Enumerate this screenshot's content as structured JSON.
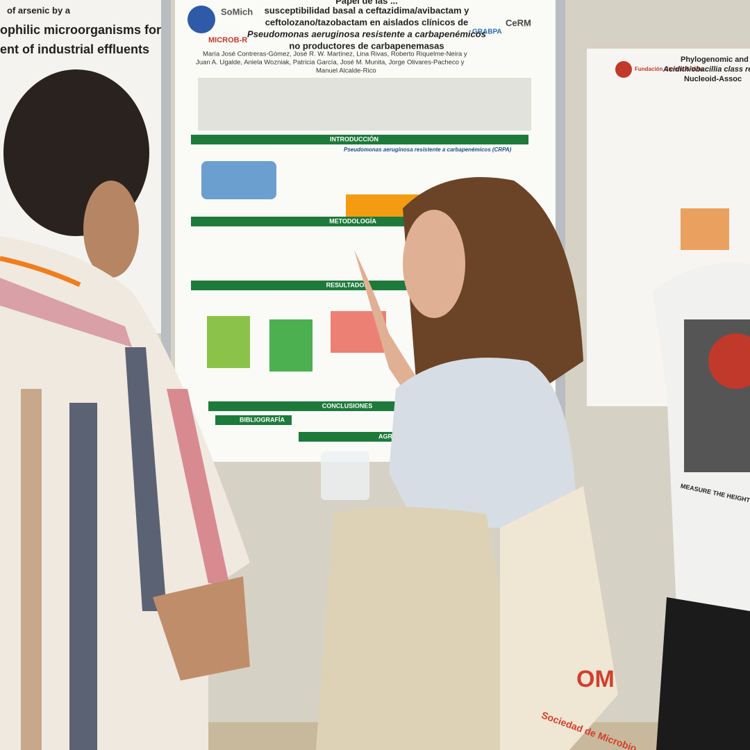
{
  "left_poster": {
    "title_lines": [
      "of arsenic by a",
      "ophilic microorganisms for",
      "ent of industrial effluents"
    ]
  },
  "center_poster": {
    "logos": [
      "SoMich",
      "MICROB-R",
      "GRABPA",
      "CeRM"
    ],
    "title_lines": [
      "Papel de las ...",
      "susceptibilidad basal a ceftazidima/avibactam y",
      "ceftolozano/tazobactam en aislados clínicos de",
      "Pseudomonas aeruginosa resistente a carbapenémicos",
      "no productores de carbapenemasas"
    ],
    "authors": [
      "María José Contreras-Gómez, José R. W. Martínez, Lina Rivas, Roberto Riquelme-Neira y",
      "Juan A. Ugalde, Aniela Wozniak, Patricia García, José M. Munita, Jorge Olivares-Pacheco y",
      "Manuel Alcalde-Rico"
    ],
    "sections": [
      "INTRODUCCIÓN",
      "METODOLOGÍA",
      "RESULTADOS",
      "CONCLUSIONES",
      "BIBLIOGRAFÍA",
      "AGRA"
    ],
    "intro_subtitle": "Pseudomonas aeruginosa resistente a carbapenémicos (CRPA)"
  },
  "right_poster": {
    "logo": "Fundación Ciencia & Vida",
    "title_lines": [
      "Phylogenomic and pa",
      "Acidithiobacillia class reve",
      "Nucleoid-Assoc"
    ]
  },
  "bag": {
    "texts": [
      "OM",
      "Sociedad de Microbio"
    ]
  },
  "shirt": {
    "text": "MEASURE THE HEIGHT OF A"
  }
}
